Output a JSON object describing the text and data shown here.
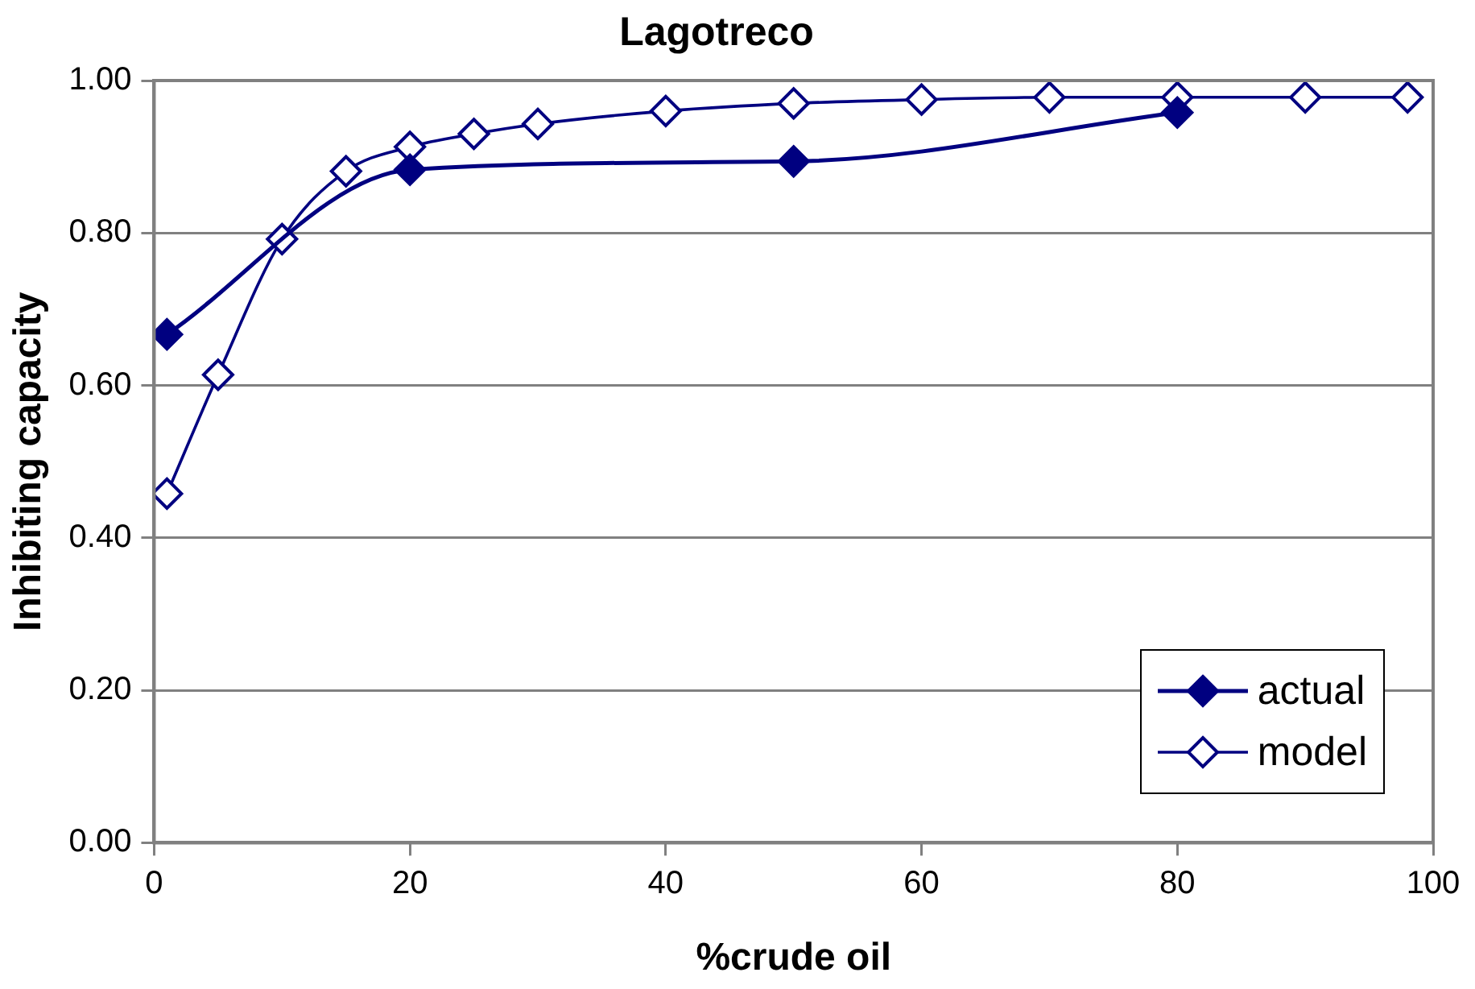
{
  "chart_data": {
    "type": "line",
    "title": "Lagotreco",
    "xlabel": "%crude oil",
    "ylabel": "Inhibiting capacity",
    "xlim": [
      0,
      100
    ],
    "xticks": [
      0,
      20,
      40,
      60,
      80,
      100
    ],
    "ylim": [
      0,
      1
    ],
    "yticks": [
      {
        "value": 0,
        "label": "0.00"
      },
      {
        "value": 0.2,
        "label": "0.20"
      },
      {
        "value": 0.4,
        "label": "0.40"
      },
      {
        "value": 0.6,
        "label": "0.60"
      },
      {
        "value": 0.8,
        "label": "0.80"
      },
      {
        "value": 1,
        "label": "1.00"
      }
    ],
    "grid": "y",
    "legend": "bottom right",
    "marker": "diamond",
    "line_style": "solid",
    "series": [
      {
        "name": "actual",
        "color": "#000080",
        "x": [
          1,
          20,
          50,
          80
        ],
        "values": [
          0.667,
          0.883,
          0.894,
          0.958
        ]
      },
      {
        "name": "model",
        "color": "#000080",
        "x": [
          1,
          5,
          10,
          15,
          20,
          25,
          30,
          40,
          50,
          60,
          70,
          80,
          90,
          98
        ],
        "values": [
          0.458,
          0.614,
          0.792,
          0.881,
          0.913,
          0.93,
          0.943,
          0.96,
          0.97,
          0.975,
          0.978,
          0.978,
          0.978,
          0.978
        ]
      }
    ]
  }
}
